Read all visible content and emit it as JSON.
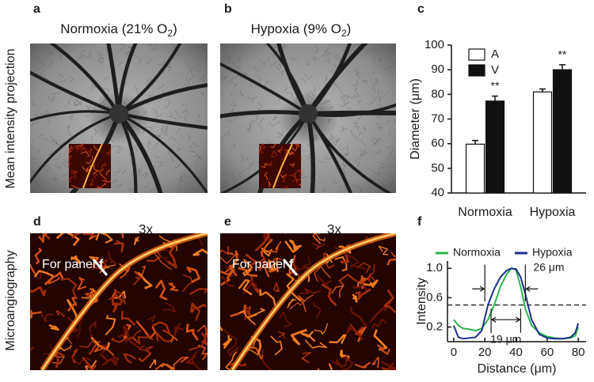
{
  "panels": {
    "a": {
      "label": "a",
      "title": [
        "Normoxia (21% O",
        "2",
        ")"
      ]
    },
    "b": {
      "label": "b",
      "title": [
        "Hypoxia (9% O",
        "2",
        ")"
      ]
    },
    "c": {
      "label": "c"
    },
    "d": {
      "label": "d",
      "zoom": "3x",
      "annotation": [
        "For panel ",
        "f"
      ]
    },
    "e": {
      "label": "e",
      "zoom": "3x",
      "annotation": [
        "For panel ",
        "f"
      ]
    },
    "f": {
      "label": "f"
    }
  },
  "row_labels": [
    "Mean intensity projection",
    "Microangiography"
  ],
  "chart_data": [
    {
      "type": "bar",
      "ylabel": "Diameter (μm)",
      "categories": [
        "Normoxia",
        "Hypoxia"
      ],
      "series": [
        {
          "name": "A",
          "color": "#ffffff",
          "values": [
            59.8,
            81
          ],
          "errors": [
            1.5,
            1.2
          ]
        },
        {
          "name": "V",
          "color": "#111111",
          "values": [
            77.3,
            90
          ],
          "errors": [
            2,
            2
          ],
          "annotations": [
            "**",
            "**"
          ]
        }
      ],
      "ylim": [
        40,
        100
      ],
      "yticks": [
        40,
        50,
        60,
        70,
        80,
        90,
        100
      ],
      "legend": "upper-left"
    },
    {
      "type": "line",
      "xlabel": "Distance (μm)",
      "ylabel": "Intensity",
      "x": [
        0,
        3,
        6,
        10,
        14,
        18,
        22,
        26,
        30,
        34,
        37,
        40,
        43,
        46,
        50,
        55,
        60,
        65,
        70,
        75,
        78,
        80
      ],
      "series": [
        {
          "name": "Normoxia",
          "color": "#2db34a",
          "values": [
            0.3,
            0.22,
            0.18,
            0.17,
            0.15,
            0.18,
            0.3,
            0.5,
            0.75,
            0.92,
            1.0,
            0.98,
            0.75,
            0.45,
            0.22,
            0.12,
            0.07,
            0.05,
            0.04,
            0.05,
            0.08,
            0.2
          ]
        },
        {
          "name": "Hypoxia",
          "color": "#1f2f8a",
          "values": [
            0.22,
            0.06,
            0.04,
            0.05,
            0.06,
            0.15,
            0.5,
            0.72,
            0.88,
            0.97,
            1.0,
            0.99,
            0.88,
            0.65,
            0.3,
            0.1,
            0.05,
            0.04,
            0.04,
            0.06,
            0.12,
            0.25
          ]
        }
      ],
      "xlim": [
        -4,
        85
      ],
      "xticks": [
        0,
        20,
        40,
        60,
        80
      ],
      "ylim": [
        0,
        1.1
      ],
      "yticks": [
        0.2,
        0.6,
        {
          "value": 1,
          "label": "1.0"
        }
      ],
      "hline": 0.5,
      "widths": [
        {
          "label": "26 μm",
          "from": 20,
          "to": 46
        },
        {
          "label": "19 μm",
          "from": 24,
          "to": 43
        }
      ],
      "legend": "top"
    }
  ]
}
